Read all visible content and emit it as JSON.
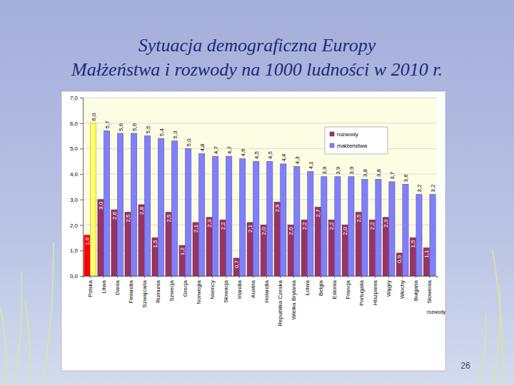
{
  "chart_data": {
    "type": "bar",
    "title": "Sytuacja demograficzna Europy",
    "subtitle": "Małżeństwa i rozwody na 1000 ludności w 2010 r.",
    "categories": [
      "Polska",
      "Litwa",
      "Dania",
      "Finlandia",
      "Szwajcaria",
      "Rumunia",
      "Szwecja",
      "Grecja",
      "Norwegia",
      "Niemcy",
      "Słowacja",
      "Irlandia",
      "Austria",
      "Holandia",
      "Republika Czeska",
      "Wielka Brytania",
      "Łotwa",
      "Belgia",
      "Estonia",
      "Francja",
      "Portugalia",
      "Hiszpania",
      "Węgry",
      "Włochy",
      "Bułgaria",
      "Słowenia"
    ],
    "series": [
      {
        "name": "rozwody",
        "color": "#993366",
        "colors": [
          "#ff0000",
          "#993366",
          "#993366",
          "#993366",
          "#993366",
          "#993366",
          "#993366",
          "#993366",
          "#993366",
          "#993366",
          "#993366",
          "#993366",
          "#993366",
          "#993366",
          "#993366",
          "#993366",
          "#993366",
          "#993366",
          "#993366",
          "#993366",
          "#993366",
          "#993366",
          "#993366",
          "#993366",
          "#993366",
          "#993366"
        ],
        "values": [
          1.6,
          3.0,
          2.6,
          2.5,
          2.8,
          1.5,
          2.5,
          1.2,
          2.1,
          2.3,
          2.2,
          0.7,
          2.1,
          2.0,
          2.9,
          2.0,
          2.2,
          2.7,
          2.2,
          2.0,
          2.5,
          2.2,
          2.3,
          0.9,
          1.5,
          1.1
        ],
        "value_labels": [
          "1,6",
          "3,0",
          "2,6",
          "2,5",
          "2,8",
          "1,5",
          "2,5",
          "1,2",
          "2,1",
          "2,3",
          "2,2",
          "0,7",
          "2,1",
          "2,0",
          "2,9",
          "2,0",
          "2,2",
          "2,7",
          "2,2",
          "2,0",
          "2,5",
          "2,2",
          "2,3",
          "0,9",
          "1,5",
          "1,1"
        ]
      },
      {
        "name": "małżeństwa",
        "color": "#8080ff",
        "colors": [
          "#ffff66",
          "#8080ff",
          "#8080ff",
          "#8080ff",
          "#8080ff",
          "#8080ff",
          "#8080ff",
          "#8080ff",
          "#8080ff",
          "#8080ff",
          "#8080ff",
          "#8080ff",
          "#8080ff",
          "#8080ff",
          "#8080ff",
          "#8080ff",
          "#8080ff",
          "#8080ff",
          "#8080ff",
          "#8080ff",
          "#8080ff",
          "#8080ff",
          "#8080ff",
          "#8080ff",
          "#8080ff",
          "#8080ff"
        ],
        "values": [
          6.0,
          5.7,
          5.6,
          5.6,
          5.5,
          5.4,
          5.3,
          5.0,
          4.8,
          4.7,
          4.7,
          4.6,
          4.5,
          4.5,
          4.4,
          4.3,
          4.1,
          3.9,
          3.9,
          3.9,
          3.8,
          3.8,
          3.7,
          3.6,
          3.2,
          3.2
        ],
        "value_labels": [
          "6,0",
          "5,7",
          "5,6",
          "5,6",
          "5,5",
          "5,4",
          "5,3",
          "5,0",
          "4,8",
          "4,7",
          "4,7",
          "4,6",
          "4,5",
          "4,5",
          "4,4",
          "4,3",
          "4,1",
          "3,9",
          "3,9",
          "3,9",
          "3,8",
          "3,8",
          "3,7",
          "3,6",
          "3,2",
          "3,2"
        ]
      }
    ],
    "ylim": [
      0,
      7
    ],
    "yticks": [
      {
        "value": 0,
        "label": "0,0"
      },
      {
        "value": 1,
        "label": "1,0"
      },
      {
        "value": 2,
        "label": "2,0"
      },
      {
        "value": 3,
        "label": "3,0"
      },
      {
        "value": 4,
        "label": "4,0"
      },
      {
        "value": 5,
        "label": "5,0"
      },
      {
        "value": 6,
        "label": "6,0"
      },
      {
        "value": 7,
        "label": "7,0"
      }
    ],
    "grid": true,
    "legend": "upper right",
    "data_labels": true,
    "annotation": "rozwody",
    "page_number": "26"
  }
}
